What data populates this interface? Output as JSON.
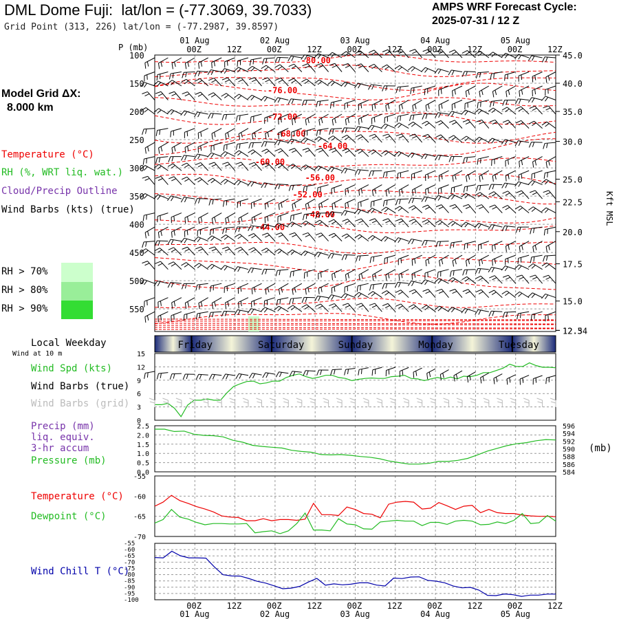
{
  "header": {
    "station": "DML Dome Fuji:",
    "latlon": "lat/lon = (-77.3069, 39.7033)",
    "grid_point": "Grid Point (313, 226) lat/lon = (-77.2987, 39.8597)",
    "cycle_line1": "AMPS WRF Forecast Cycle:",
    "cycle_line2": "2025-07-31 / 12  Z",
    "model_grid_line1": "Model Grid ΔX:",
    "model_grid_line2": "8.000 km"
  },
  "colors": {
    "temperature": "#ee0000",
    "rh": "#22bb22",
    "cloud": "#7733aa",
    "wind": "#000000",
    "wind_grid": "#bbbbbb",
    "precip": "#7733aa",
    "pressure": "#22bb22",
    "dewpoint": "#22bb22",
    "windchill": "#0000aa",
    "rh70": "#ccffcc",
    "rh80": "#99ee99",
    "rh90": "#33dd33",
    "weekday_dark": "#1a2a7a",
    "weekday_light": "#f4f4d8"
  },
  "legend": {
    "temperature": "Temperature (°C)",
    "rh": "RH (%, WRT liq. wat.)",
    "cloud": "Cloud/Precip Outline",
    "wind": "Wind Barbs (kts) (true)",
    "rh70": "RH > 70%",
    "rh80": "RH > 80%",
    "rh90": "RH > 90%",
    "local_weekday": "Local Weekday",
    "wind_at": "Wind at 10 m",
    "wind_spd": "Wind Spd (kts)",
    "wind_barbs": "Wind Barbs (true)",
    "wind_barbs_grid": "Wind Barbs (grid)",
    "precip": "Precip (mm)",
    "liq": "liq. equiv.",
    "accum": "3-hr accum",
    "pressure": "Pressure (mb)",
    "pressure_unit": "(mb)",
    "temp2": "Temperature (°C)",
    "dewpoint": "Dewpoint (°C)",
    "windchill": "Wind Chill T (°C)"
  },
  "chart_data": [
    {
      "type": "line",
      "panel": "vertical cross-section",
      "xlabel": "",
      "ylabel": "P (mb)",
      "y2label": "Kft MSL",
      "ylim": [
        590,
        100
      ],
      "yticks": [
        100,
        150,
        200,
        250,
        300,
        350,
        400,
        450,
        500,
        550
      ],
      "y2ticks": [
        {
          "p": 100,
          "label": "45.0"
        },
        {
          "p": 150,
          "label": "40.0"
        },
        {
          "p": 200,
          "label": "35.0"
        },
        {
          "p": 253,
          "label": "30.0"
        },
        {
          "p": 320,
          "label": "25.0"
        },
        {
          "p": 360,
          "label": "22.5"
        },
        {
          "p": 413,
          "label": "20.0"
        },
        {
          "p": 470,
          "label": "17.5"
        },
        {
          "p": 536,
          "label": "15.0"
        },
        {
          "p": 588,
          "label": "12.5"
        },
        {
          "p": 588,
          "label": "12.34"
        }
      ],
      "date_labels": [
        "01 Aug",
        "02 Aug",
        "03 Aug",
        "04 Aug",
        "05 Aug"
      ],
      "time_labels": [
        "00Z",
        "12Z",
        "00Z",
        "12Z",
        "00Z",
        "12Z",
        "00Z",
        "12Z",
        "00Z",
        "12Z"
      ],
      "temperature_labels": [
        {
          "t": 43,
          "p": 112,
          "label": "-80.00"
        },
        {
          "t": 35,
          "p": 165,
          "label": "-76.00"
        },
        {
          "t": 35,
          "p": 212,
          "label": "-72.00"
        },
        {
          "t": 37,
          "p": 242,
          "label": "-68.00"
        },
        {
          "t": 47,
          "p": 264,
          "label": "-64.00"
        },
        {
          "t": 32,
          "p": 292,
          "label": "-60.00"
        },
        {
          "t": 44,
          "p": 320,
          "label": "-56.00"
        },
        {
          "t": 41,
          "p": 350,
          "label": "-52.00"
        },
        {
          "t": 44,
          "p": 385,
          "label": "-48.00"
        },
        {
          "t": 32,
          "p": 408,
          "label": "-44.00"
        }
      ]
    },
    {
      "type": "line",
      "panel": "weekday bar",
      "categories": [
        "Friday",
        "Saturday",
        "Sunday",
        "Monday",
        "Tuesday"
      ]
    },
    {
      "type": "line",
      "panel": "10 m wind",
      "ylim": [
        0,
        15
      ],
      "yticks": [
        0,
        3,
        6,
        9,
        12,
        15
      ],
      "series": [
        {
          "values": [
            3.5,
            3.5,
            3.8,
            2.7,
            0.8,
            3.4,
            4.5,
            4.5,
            4.8,
            4.5,
            4.5,
            6.2,
            7.6,
            8.2,
            8.7,
            8.8,
            8.2,
            8.4,
            8.8,
            8.8,
            9.6,
            10.1,
            10.4,
            9.8,
            9.4,
            9.7,
            10.1,
            10.1,
            9.6,
            9.4,
            8.9,
            9.2,
            9.4,
            9.5,
            9.4,
            9.4,
            9.8,
            9.9,
            10.1,
            9.4,
            9.3,
            8.9,
            9.3,
            9.6,
            9.3,
            9.7,
            9.3,
            9.9,
            9.8,
            10.1,
            10.7,
            10.7,
            11.2,
            11.7,
            12.6,
            12.1,
            12.1,
            12.9,
            12.3,
            11.9,
            11.9,
            11.8
          ]
        }
      ]
    },
    {
      "type": "line",
      "panel": "precip and pressure",
      "ylim": [
        0,
        2.5
      ],
      "yticks": [
        "0.0",
        "0.5",
        "1.0",
        "1.5",
        "2.0",
        "2.5"
      ],
      "y2lim": [
        584,
        596
      ],
      "y2ticks": [
        "596",
        "594",
        "592",
        "590",
        "588",
        "586",
        "584"
      ],
      "series": [
        {
          "name": "Pressure (mb)",
          "values": [
            595.1,
            595.1,
            594.5,
            594.6,
            593.8,
            593.5,
            593.4,
            593.1,
            592.2,
            591.7,
            590.9,
            590.6,
            590.4,
            590.2,
            589.6,
            589.3,
            589.1,
            588.5,
            588.4,
            588.5,
            588.3,
            588.0,
            587.8,
            587.4,
            586.8,
            586.4,
            586.0,
            586.0,
            586.2,
            586.7,
            586.7,
            587.0,
            587.5,
            588.4,
            589.4,
            590.1,
            590.8,
            591.3,
            591.6,
            592.1,
            592.4,
            592.3
          ]
        }
      ]
    },
    {
      "type": "line",
      "panel": "temperature and dewpoint",
      "ylim": [
        -70,
        -55
      ],
      "yticks": [
        "-55",
        "-60",
        "-65",
        "-70"
      ],
      "series": [
        {
          "name": "Temperature (°C)",
          "values": [
            -62.5,
            -61.5,
            -59.8,
            -61.1,
            -61.8,
            -62.6,
            -63.2,
            -63.9,
            -64.9,
            -65.2,
            -65.3,
            -66.1,
            -66.1,
            -65.6,
            -66.1,
            -65.8,
            -65.8,
            -66.0,
            -65.7,
            -61.8,
            -64.6,
            -64.6,
            -64.8,
            -62.7,
            -63.3,
            -64.3,
            -64.5,
            -65.4,
            -62.0,
            -61.5,
            -61.3,
            -61.5,
            -63.2,
            -63.0,
            -61.6,
            -62.4,
            -63.3,
            -62.5,
            -62.3,
            -64.1,
            -63.3,
            -64.1,
            -64.3,
            -64.3,
            -64.7,
            -64.9,
            -65.0,
            -65.0,
            -65.1
          ]
        },
        {
          "name": "Dewpoint (°C)",
          "values": [
            -66.7,
            -65.8,
            -63.3,
            -65.2,
            -65.7,
            -66.5,
            -67.1,
            -66.8,
            -66.8,
            -66.9,
            -66.9,
            -66.8,
            -69.1,
            -68.8,
            -68.6,
            -69.3,
            -68.6,
            -66.8,
            -64.2,
            -68.4,
            -68.4,
            -68.6,
            -65.6,
            -66.9,
            -67.1,
            -68.1,
            -68.2,
            -66.4,
            -66.2,
            -66.0,
            -66.2,
            -66.2,
            -67.3,
            -66.5,
            -66.5,
            -67.0,
            -66.2,
            -66.0,
            -66.2,
            -67.1,
            -67.0,
            -66.4,
            -66.8,
            -66.0,
            -64.3,
            -66.8,
            -66.6,
            -64.8,
            -66.2
          ]
        }
      ]
    },
    {
      "type": "line",
      "panel": "wind chill",
      "ylim": [
        -100,
        -55
      ],
      "yticks": [
        "-55",
        "-60",
        "-65",
        "-70",
        "-75",
        "-80",
        "-85",
        "-90",
        "-95",
        "-100"
      ],
      "date_labels": [
        "01 Aug",
        "02 Aug",
        "03 Aug",
        "04 Aug",
        "05 Aug"
      ],
      "time_labels": [
        "00Z",
        "12Z",
        "00Z",
        "12Z",
        "00Z",
        "12Z",
        "00Z",
        "12Z",
        "00Z",
        "12Z"
      ],
      "series": [
        {
          "name": "Wind Chill T (°C)",
          "values": [
            -66.3,
            -66.6,
            -61.3,
            -64.9,
            -66.6,
            -66.6,
            -66.8,
            -73.9,
            -80.0,
            -81.0,
            -81.1,
            -83.0,
            -85.3,
            -86.7,
            -88.9,
            -91.2,
            -90.7,
            -89.3,
            -85.9,
            -83.0,
            -88.4,
            -87.3,
            -88.1,
            -87.6,
            -86.5,
            -86.5,
            -88.3,
            -89.0,
            -82.7,
            -83.1,
            -81.9,
            -81.7,
            -84.5,
            -85.2,
            -86.5,
            -89.1,
            -90.5,
            -90.1,
            -92.3,
            -96.5,
            -96.7,
            -95.4,
            -96.0,
            -97.3,
            -96.3,
            -96.3,
            -95.5,
            -95.5
          ]
        }
      ]
    }
  ]
}
